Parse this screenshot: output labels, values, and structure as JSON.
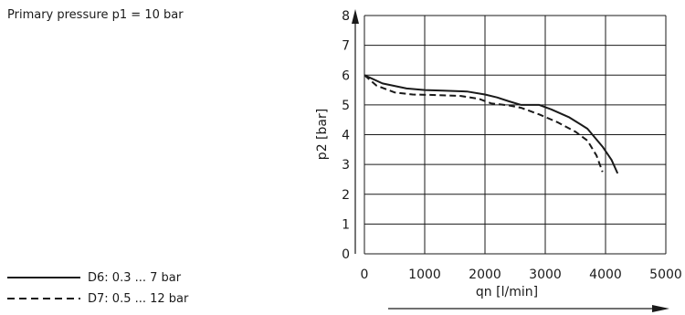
{
  "note": "Primary pressure p1 = 10 bar",
  "chart_data": {
    "type": "line",
    "xlabel": "qn [l/min]",
    "ylabel": "p2 [bar]",
    "xlim": [
      0,
      5000
    ],
    "ylim": [
      0,
      8
    ],
    "xticks": [
      "0",
      "1000",
      "2000",
      "3000",
      "4000",
      "5000"
    ],
    "yticks": [
      "0",
      "1",
      "2",
      "3",
      "4",
      "5",
      "6",
      "7",
      "8"
    ],
    "grid": true,
    "legend_position": "bottom-left",
    "series": [
      {
        "name": "D6: 0.3 ... 7 bar",
        "style": "solid",
        "color": "#1a1a1a",
        "points": [
          [
            0,
            6.0
          ],
          [
            300,
            5.72
          ],
          [
            700,
            5.55
          ],
          [
            1000,
            5.5
          ],
          [
            1300,
            5.48
          ],
          [
            1700,
            5.45
          ],
          [
            2000,
            5.35
          ],
          [
            2200,
            5.25
          ],
          [
            2400,
            5.12
          ],
          [
            2600,
            5.0
          ],
          [
            2900,
            5.0
          ],
          [
            3100,
            4.85
          ],
          [
            3400,
            4.58
          ],
          [
            3700,
            4.2
          ],
          [
            3950,
            3.6
          ],
          [
            4100,
            3.15
          ],
          [
            4200,
            2.7
          ]
        ]
      },
      {
        "name": "D7: 0.5 ... 12 bar",
        "style": "dashed",
        "color": "#1a1a1a",
        "points": [
          [
            0,
            6.0
          ],
          [
            200,
            5.65
          ],
          [
            500,
            5.42
          ],
          [
            800,
            5.35
          ],
          [
            1200,
            5.33
          ],
          [
            1600,
            5.3
          ],
          [
            1900,
            5.2
          ],
          [
            2100,
            5.05
          ],
          [
            2400,
            4.98
          ],
          [
            2600,
            4.9
          ],
          [
            2900,
            4.68
          ],
          [
            3200,
            4.42
          ],
          [
            3500,
            4.1
          ],
          [
            3700,
            3.8
          ],
          [
            3850,
            3.3
          ],
          [
            3950,
            2.75
          ]
        ]
      }
    ]
  }
}
